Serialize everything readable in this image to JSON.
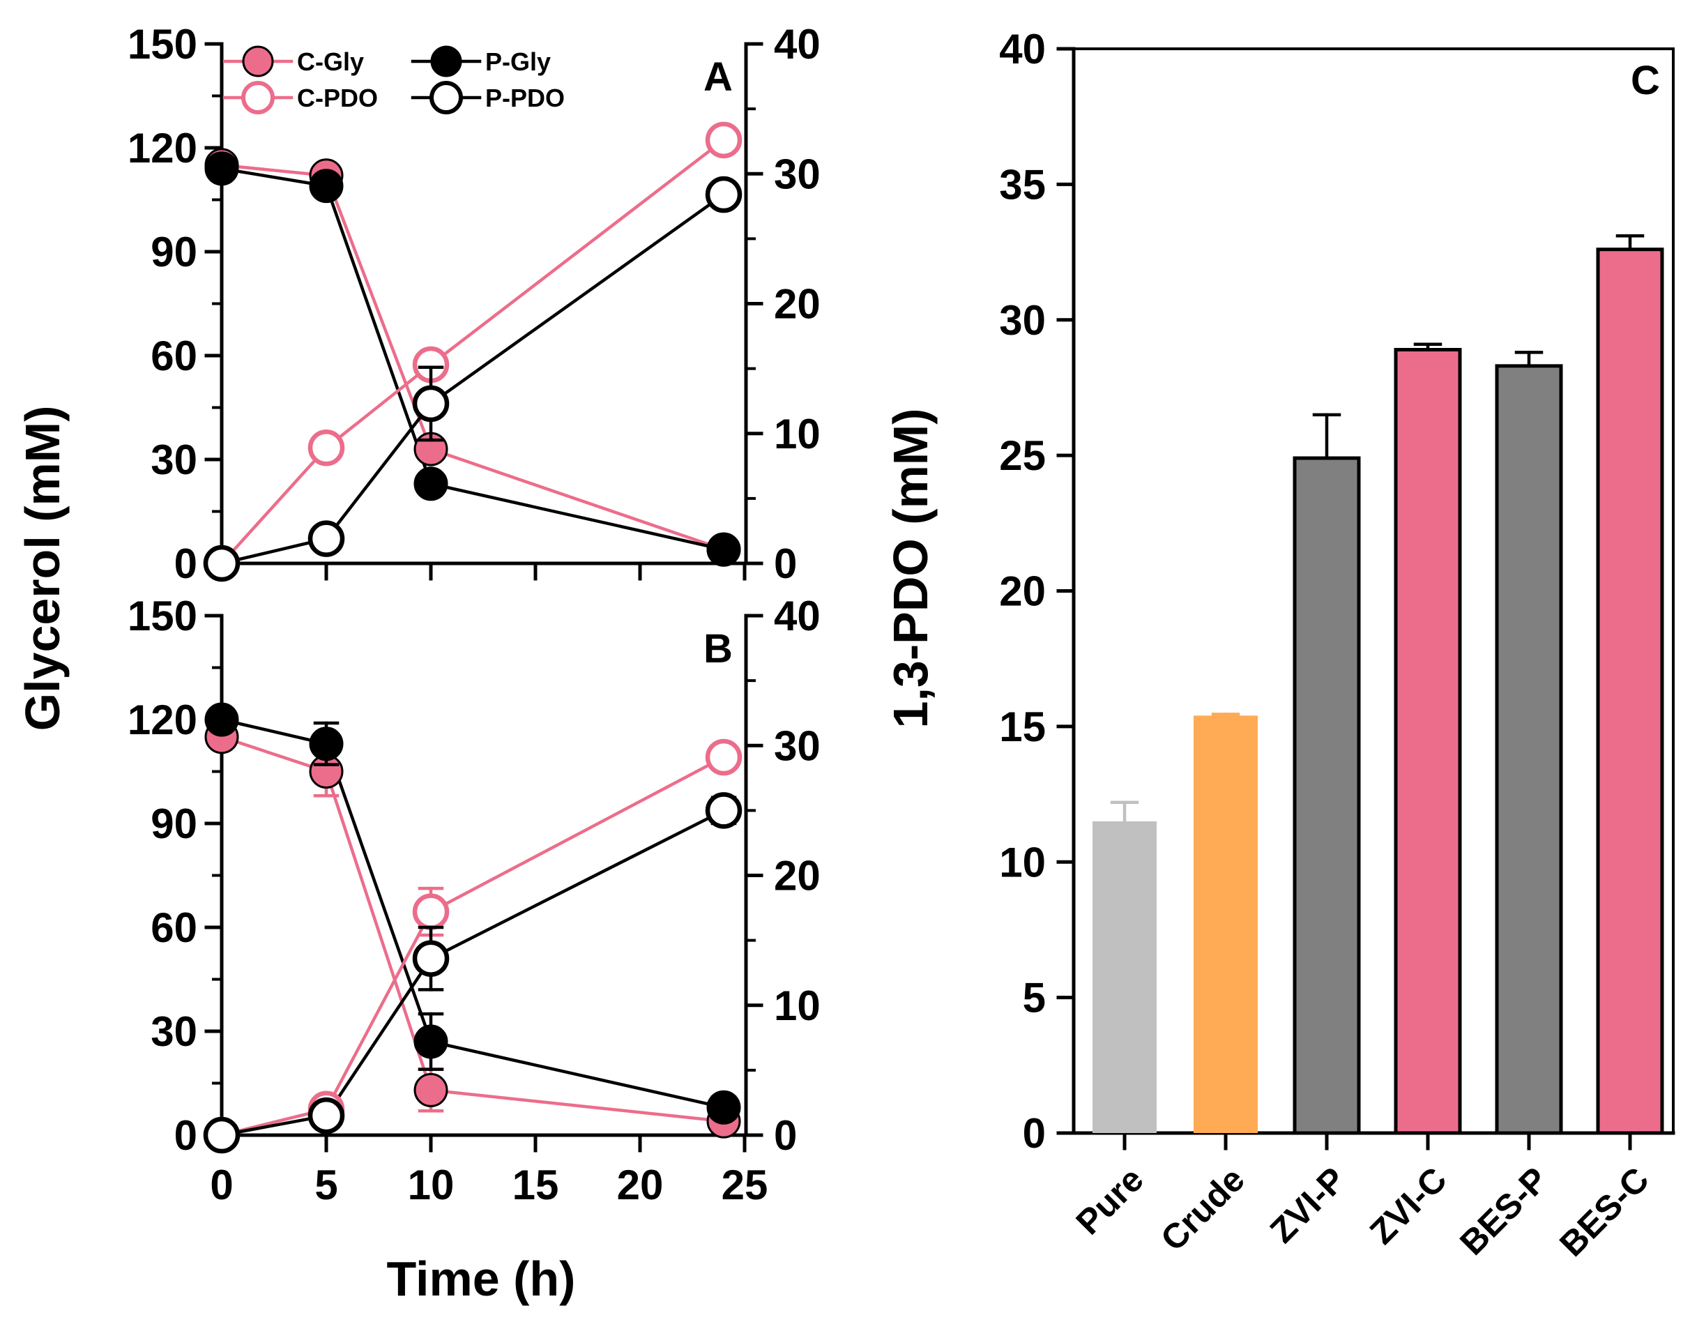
{
  "figure": {
    "ylabel_left": "Glycerol (mM)",
    "ylabel_middle": "1,3-PDO (mM)",
    "xlabel_bottom": "Time (h)"
  },
  "colors": {
    "crude": "#ec6d8b",
    "pure": "#000000",
    "bar_pure": "#c0c0c0",
    "bar_crude": "#ffaa55",
    "bar_gray": "#808080",
    "bar_pink": "#ec6d8b"
  },
  "legend": [
    {
      "label": "C-Gly",
      "color": "#ec6d8b",
      "filled": true
    },
    {
      "label": "P-Gly",
      "color": "#000000",
      "filled": true
    },
    {
      "label": "C-PDO",
      "color": "#ec6d8b",
      "filled": false
    },
    {
      "label": "P-PDO",
      "color": "#000000",
      "filled": false
    }
  ],
  "chart_data": [
    {
      "panel": "A",
      "type": "line",
      "x": [
        0,
        5,
        10,
        24
      ],
      "xlim": [
        0,
        25
      ],
      "xticks": [
        0,
        5,
        10,
        15,
        20,
        25
      ],
      "xlabel": "Time (h)",
      "ylim_left": [
        0,
        150
      ],
      "yticks_left": [
        0,
        30,
        60,
        90,
        120,
        150
      ],
      "ylabel_left": "Glycerol (mM)",
      "ylim_right": [
        0,
        40
      ],
      "yticks_right": [
        0,
        10,
        20,
        30,
        40
      ],
      "series": [
        {
          "name": "C-Gly",
          "axis": "left",
          "color": "#ec6d8b",
          "filled": true,
          "values": [
            115,
            112,
            33,
            4
          ],
          "errors": [
            0,
            0,
            0,
            0
          ]
        },
        {
          "name": "P-Gly",
          "axis": "left",
          "color": "#000000",
          "filled": true,
          "values": [
            114,
            109,
            23,
            4
          ],
          "errors": [
            0,
            0,
            0,
            0
          ]
        },
        {
          "name": "C-PDO",
          "axis": "right",
          "color": "#ec6d8b",
          "filled": false,
          "values": [
            0,
            8.9,
            15.3,
            32.6
          ],
          "errors": [
            0,
            0,
            0,
            0
          ]
        },
        {
          "name": "P-PDO",
          "axis": "right",
          "color": "#000000",
          "filled": false,
          "values": [
            0,
            1.9,
            12.3,
            28.4
          ],
          "errors": [
            0,
            0,
            2.8,
            0
          ]
        }
      ]
    },
    {
      "panel": "B",
      "type": "line",
      "x": [
        0,
        5,
        10,
        24
      ],
      "xlim": [
        0,
        25
      ],
      "xticks": [
        0,
        5,
        10,
        15,
        20,
        25
      ],
      "xlabel": "Time (h)",
      "ylim_left": [
        0,
        150
      ],
      "yticks_left": [
        0,
        30,
        60,
        90,
        120,
        150
      ],
      "ylabel_left": "Glycerol (mM)",
      "ylim_right": [
        0,
        40
      ],
      "yticks_right": [
        0,
        10,
        20,
        30,
        40
      ],
      "series": [
        {
          "name": "C-Gly",
          "axis": "left",
          "color": "#ec6d8b",
          "filled": true,
          "values": [
            115,
            105,
            13,
            4
          ],
          "errors": [
            0,
            7,
            6,
            0
          ]
        },
        {
          "name": "P-Gly",
          "axis": "left",
          "color": "#000000",
          "filled": true,
          "values": [
            120,
            113,
            27,
            8
          ],
          "errors": [
            0,
            6,
            8,
            3
          ]
        },
        {
          "name": "C-PDO",
          "axis": "right",
          "color": "#ec6d8b",
          "filled": false,
          "values": [
            0,
            2.0,
            17.2,
            29.1
          ],
          "errors": [
            0,
            0,
            1.8,
            0
          ]
        },
        {
          "name": "P-PDO",
          "axis": "right",
          "color": "#000000",
          "filled": false,
          "values": [
            0,
            1.5,
            13.6,
            25.0
          ],
          "errors": [
            0,
            0,
            2.4,
            1.0
          ]
        }
      ]
    },
    {
      "panel": "C",
      "type": "bar",
      "categories": [
        "Pure",
        "Crude",
        "ZVI-P",
        "ZVI-C",
        "BES-P",
        "BES-C"
      ],
      "values": [
        11.5,
        15.4,
        24.9,
        28.9,
        28.3,
        32.6
      ],
      "errors": [
        0.7,
        0.05,
        1.6,
        0.2,
        0.5,
        0.5
      ],
      "colors": [
        "#c0c0c0",
        "#ffaa55",
        "#808080",
        "#ec6d8b",
        "#808080",
        "#ec6d8b"
      ],
      "ylim": [
        0,
        40
      ],
      "yticks": [
        0,
        5,
        10,
        15,
        20,
        25,
        30,
        35,
        40
      ],
      "ylabel": "1,3-PDO (mM)"
    }
  ]
}
